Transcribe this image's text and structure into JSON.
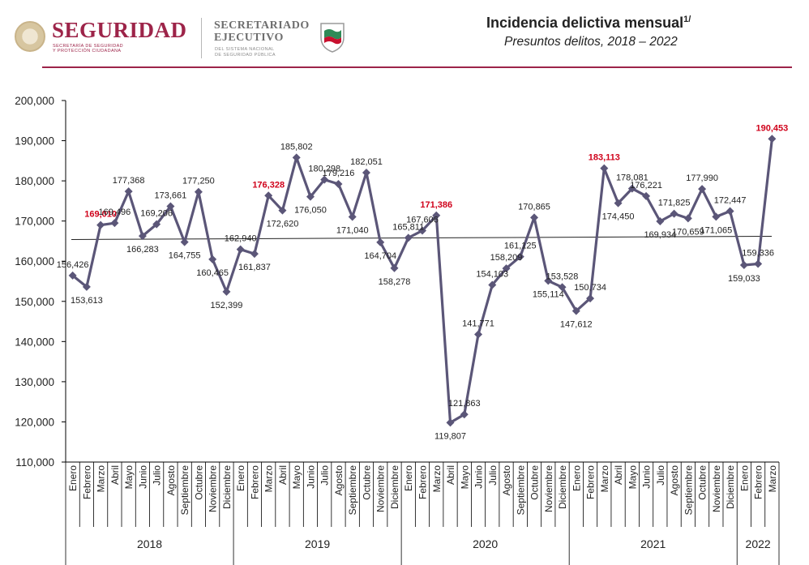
{
  "header": {
    "brand_main": "SEGURIDAD",
    "brand_main_sub": [
      "SECRETARÍA DE SEGURIDAD",
      "Y PROTECCIÓN CIUDADANA"
    ],
    "brand_second": [
      "SECRETARIADO",
      "EJECUTIVO"
    ],
    "brand_second_sub": [
      "DEL SISTEMA NACIONAL",
      "DE SEGURIDAD PÚBLICA"
    ],
    "title": "Incidencia delictiva mensual",
    "title_sup": "1/",
    "subtitle": "Presuntos delitos, 2018 – 2022"
  },
  "colors": {
    "brand": "#9d2449",
    "line": "#5b5678",
    "highlight_label": "#d0021b",
    "text": "#222222"
  },
  "chart_data": {
    "type": "line",
    "title": "Incidencia delictiva mensual",
    "subtitle": "Presuntos delitos, 2018 – 2022",
    "ylim": [
      110000,
      200000
    ],
    "yticks": [
      "110,000",
      "120,000",
      "130,000",
      "140,000",
      "150,000",
      "160,000",
      "170,000",
      "180,000",
      "190,000",
      "200,000"
    ],
    "ytick_values": [
      110000,
      120000,
      130000,
      140000,
      150000,
      160000,
      170000,
      180000,
      190000,
      200000
    ],
    "grid": false,
    "months": [
      "Enero",
      "Febrero",
      "Marzo",
      "Abril",
      "Mayo",
      "Junio",
      "Julio",
      "Agosto",
      "Septiembre",
      "Octubre",
      "Noviembre",
      "Diciembre"
    ],
    "years": [
      {
        "label": "2018",
        "months": 12
      },
      {
        "label": "2019",
        "months": 12
      },
      {
        "label": "2020",
        "months": 12
      },
      {
        "label": "2021",
        "months": 12
      },
      {
        "label": "2022",
        "months": 3
      }
    ],
    "values": [
      156426,
      153613,
      169010,
      169496,
      177368,
      166283,
      169206,
      173661,
      164755,
      177250,
      160465,
      152399,
      162940,
      161837,
      176328,
      172620,
      185802,
      176050,
      180298,
      179216,
      171040,
      182051,
      164704,
      158278,
      165811,
      167606,
      171386,
      119807,
      121863,
      141771,
      154103,
      158209,
      161125,
      170865,
      155114,
      153528,
      147612,
      150734,
      183113,
      174450,
      178081,
      176221,
      169934,
      171825,
      170659,
      177990,
      171065,
      172447,
      159033,
      159336,
      190453
    ],
    "labels": [
      "156,426",
      "153,613",
      "169,010",
      "169,496",
      "177,368",
      "166,283",
      "169,206",
      "173,661",
      "164,755",
      "177,250",
      "160,465",
      "152,399",
      "162,940",
      "161,837",
      "176,328",
      "172,620",
      "185,802",
      "176,050",
      "180,298",
      "179,216",
      "171,040",
      "182,051",
      "164,704",
      "158,278",
      "165,811",
      "167,606",
      "171,386",
      "119,807",
      "121,863",
      "141,771",
      "154,103",
      "158,209",
      "161,125",
      "170,865",
      "155,114",
      "153,528",
      "147,612",
      "150,734",
      "183,113",
      "174,450",
      "178,081",
      "176,221",
      "169,934",
      "171,825",
      "170,659",
      "177,990",
      "171,065",
      "172,447",
      "159,033",
      "159,336",
      "190,453"
    ],
    "highlighted_indices": [
      2,
      14,
      26,
      38,
      50
    ],
    "trend_line": {
      "start_value": 165400,
      "end_value": 166200
    }
  }
}
